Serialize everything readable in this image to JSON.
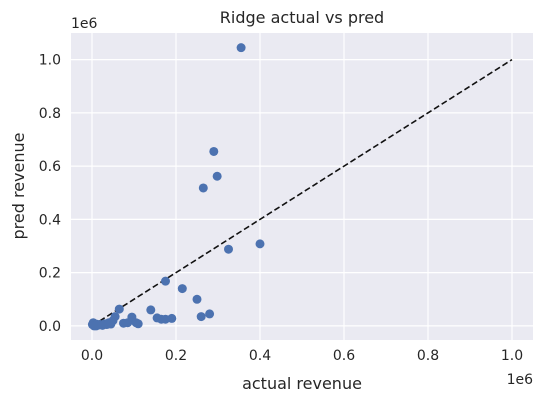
{
  "chart_data": {
    "type": "scatter",
    "title": "Ridge actual vs pred",
    "xlabel": "actual revenue",
    "ylabel": "pred revenue",
    "x_offset_label": "1e6",
    "y_offset_label": "1e6",
    "xlim": [
      -0.05,
      1.05
    ],
    "ylim": [
      -0.053,
      1.1
    ],
    "xticks": [
      0.0,
      0.2,
      0.4,
      0.6,
      0.8,
      1.0
    ],
    "yticks": [
      0.0,
      0.2,
      0.4,
      0.6,
      0.8,
      1.0
    ],
    "xtick_labels": [
      "0.0",
      "0.2",
      "0.4",
      "0.6",
      "0.8",
      "1.0"
    ],
    "ytick_labels": [
      "0.0",
      "0.2",
      "0.4",
      "0.6",
      "0.8",
      "1.0"
    ],
    "grid": true,
    "background": "#eaeaf2",
    "point_color": "#4c72b0",
    "reference_line": {
      "x": [
        0.0,
        1.0
      ],
      "y": [
        0.0,
        1.0
      ],
      "style": "dashed",
      "color": "#111111"
    },
    "points": {
      "x": [
        0.001,
        0.003,
        0.006,
        0.01,
        0.015,
        0.02,
        0.025,
        0.03,
        0.035,
        0.04,
        0.045,
        0.05,
        0.055,
        0.065,
        0.075,
        0.085,
        0.095,
        0.105,
        0.11,
        0.14,
        0.155,
        0.165,
        0.175,
        0.19,
        0.175,
        0.215,
        0.25,
        0.26,
        0.265,
        0.28,
        0.29,
        0.298,
        0.325,
        0.355,
        0.4,
        0.005,
        0.012
      ],
      "y": [
        0.005,
        0.012,
        0.002,
        0.0,
        0.003,
        0.005,
        0.002,
        0.008,
        0.005,
        0.012,
        0.007,
        0.02,
        0.035,
        0.063,
        0.01,
        0.012,
        0.033,
        0.012,
        0.008,
        0.06,
        0.03,
        0.025,
        0.025,
        0.028,
        0.168,
        0.14,
        0.1,
        0.035,
        0.518,
        0.045,
        0.655,
        0.562,
        0.288,
        1.045,
        0.308,
        0.0,
        0.006
      ]
    }
  }
}
